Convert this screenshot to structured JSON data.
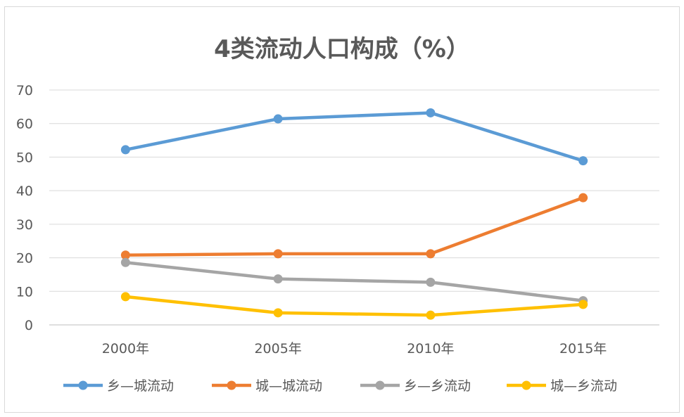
{
  "chart_data": {
    "type": "line",
    "title": "4类流动人口构成（%）",
    "xlabel": "",
    "ylabel": "",
    "categories": [
      "2000年",
      "2005年",
      "2010年",
      "2015年"
    ],
    "ylim": [
      0,
      70
    ],
    "yticks": [
      0,
      10,
      20,
      30,
      40,
      50,
      60,
      70
    ],
    "grid": true,
    "legend_position": "bottom",
    "series": [
      {
        "name": "乡—城流动",
        "color": "#5B9BD5",
        "values": [
          52.2,
          61.4,
          63.2,
          48.9
        ]
      },
      {
        "name": "城—城流动",
        "color": "#ED7D31",
        "values": [
          20.8,
          21.2,
          21.2,
          37.9
        ]
      },
      {
        "name": "乡—乡流动",
        "color": "#A5A5A5",
        "values": [
          18.6,
          13.7,
          12.7,
          7.2
        ]
      },
      {
        "name": "城—乡流动",
        "color": "#FFC000",
        "values": [
          8.4,
          3.6,
          2.9,
          6.1
        ]
      }
    ]
  }
}
